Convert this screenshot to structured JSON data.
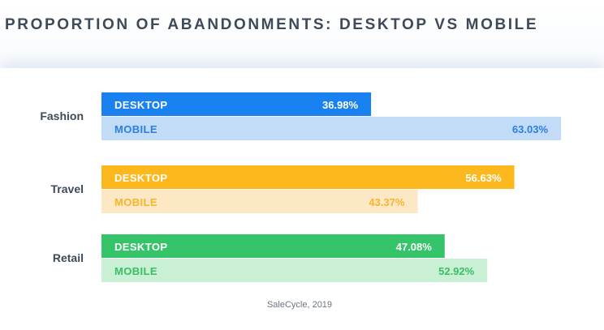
{
  "title": "PROPORTION OF ABANDONMENTS: DESKTOP VS MOBILE",
  "source": "SaleCycle, 2019",
  "chart_data": {
    "type": "bar",
    "orientation": "horizontal",
    "title": "PROPORTION OF ABANDONMENTS: DESKTOP VS MOBILE",
    "categories": [
      "Fashion",
      "Travel",
      "Retail"
    ],
    "series": [
      {
        "name": "DESKTOP",
        "values": [
          36.98,
          56.63,
          47.08
        ],
        "labels": [
          "36.98%",
          "56.63%",
          "47.08%"
        ]
      },
      {
        "name": "MOBILE",
        "values": [
          63.03,
          43.37,
          52.92
        ],
        "labels": [
          "63.03%",
          "43.37%",
          "52.92%"
        ]
      }
    ],
    "colors": {
      "Fashion": {
        "desktop_bar": "#1a82f0",
        "desktop_text": "#ffffff",
        "mobile_bar": "#c2dcf8",
        "mobile_text": "#2b7ee2"
      },
      "Travel": {
        "desktop_bar": "#fdb81e",
        "desktop_text": "#ffffff",
        "mobile_bar": "#fde8c4",
        "mobile_text": "#f8b42a"
      },
      "Retail": {
        "desktop_bar": "#35c46a",
        "desktop_text": "#ffffff",
        "mobile_bar": "#c9efd4",
        "mobile_text": "#38bf64"
      }
    },
    "xlim": [
      0,
      70
    ],
    "grid": false,
    "legend": "none",
    "source": "SaleCycle, 2019"
  }
}
